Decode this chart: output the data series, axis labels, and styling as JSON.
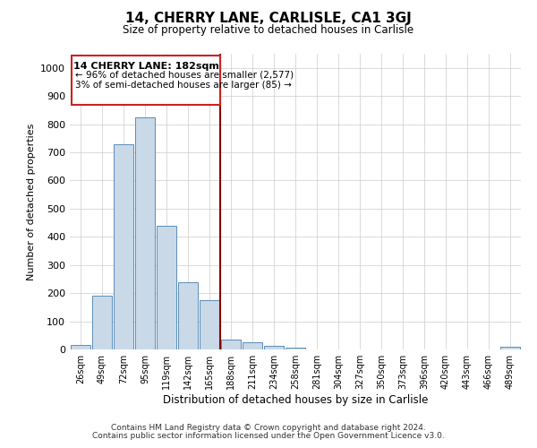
{
  "title": "14, CHERRY LANE, CARLISLE, CA1 3GJ",
  "subtitle": "Size of property relative to detached houses in Carlisle",
  "xlabel": "Distribution of detached houses by size in Carlisle",
  "ylabel": "Number of detached properties",
  "footer_line1": "Contains HM Land Registry data © Crown copyright and database right 2024.",
  "footer_line2": "Contains public sector information licensed under the Open Government Licence v3.0.",
  "bar_labels": [
    "26sqm",
    "49sqm",
    "72sqm",
    "95sqm",
    "119sqm",
    "142sqm",
    "165sqm",
    "188sqm",
    "211sqm",
    "234sqm",
    "258sqm",
    "281sqm",
    "304sqm",
    "327sqm",
    "350sqm",
    "373sqm",
    "396sqm",
    "420sqm",
    "443sqm",
    "466sqm",
    "489sqm"
  ],
  "bar_values": [
    15,
    190,
    730,
    825,
    440,
    238,
    175,
    35,
    25,
    12,
    5,
    0,
    0,
    0,
    0,
    0,
    0,
    0,
    0,
    0,
    8
  ],
  "bar_color": "#c9d9e8",
  "bar_edgecolor": "#5b8db8",
  "property_line_label": "14 CHERRY LANE: 182sqm",
  "annotation_line1": "← 96% of detached houses are smaller (2,577)",
  "annotation_line2": "3% of semi-detached houses are larger (85) →",
  "vline_color": "#8b0000",
  "box_edgecolor": "#cc2222",
  "vline_index": 7,
  "ylim": [
    0,
    1050
  ],
  "yticks": [
    0,
    100,
    200,
    300,
    400,
    500,
    600,
    700,
    800,
    900,
    1000
  ],
  "background_color": "#ffffff",
  "grid_color": "#cccccc"
}
